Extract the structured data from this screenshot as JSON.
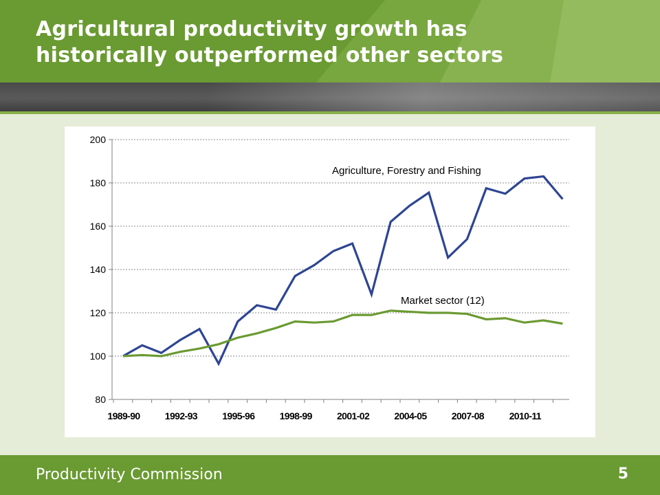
{
  "slide": {
    "title_line1": "Agricultural productivity growth has",
    "title_line2": "historically outperformed other sectors",
    "footer_org": "Productivity Commission",
    "page_number": "5"
  },
  "colors": {
    "brand_green": "#6a9a32",
    "background": "#e5ecd7",
    "agriculture_series": "#2e4593",
    "market_series": "#6b9a32"
  },
  "chart_data": {
    "type": "line",
    "title": "",
    "xlabel": "",
    "ylabel": "",
    "ylim": [
      80,
      200
    ],
    "yticks": [
      80,
      100,
      120,
      140,
      160,
      180,
      200
    ],
    "grid": true,
    "x": [
      "1989-90",
      "1990-91",
      "1991-92",
      "1992-93",
      "1993-94",
      "1994-95",
      "1995-96",
      "1996-97",
      "1997-98",
      "1998-99",
      "1999-00",
      "2000-01",
      "2001-02",
      "2002-03",
      "2003-04",
      "2004-05",
      "2005-06",
      "2006-07",
      "2007-08",
      "2008-09",
      "2009-10",
      "2010-11",
      "2011-12",
      "2012-13"
    ],
    "xtick_labels": [
      "1989-90",
      "1992-93",
      "1995-96",
      "1998-99",
      "2001-02",
      "2004-05",
      "2007-08",
      "2010-11"
    ],
    "series": [
      {
        "name": "Agriculture, Forestry and Fishing",
        "values": [
          100,
          105,
          101.5,
          107.5,
          112.5,
          96.5,
          116,
          123.5,
          121.5,
          137,
          142,
          148.5,
          152,
          128.5,
          162,
          169.5,
          175.5,
          145.5,
          154,
          177.5,
          175,
          182,
          183,
          172.5
        ]
      },
      {
        "name": "Market sector (12)",
        "values": [
          100,
          100.5,
          100,
          102,
          103.5,
          105.5,
          108.5,
          110.5,
          113,
          116,
          115.5,
          116,
          119,
          119,
          121,
          120.5,
          120,
          120,
          119.5,
          117,
          117.5,
          115.5,
          116.5,
          115
        ]
      }
    ]
  }
}
